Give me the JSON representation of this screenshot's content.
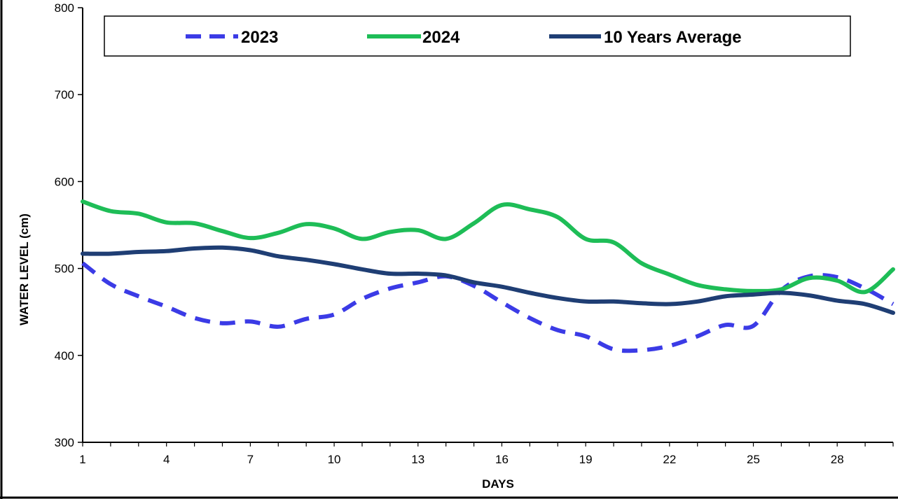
{
  "chart_data": {
    "type": "line",
    "xlabel": "DAYS",
    "ylabel": "WATER LEVEL (cm)",
    "xlim": [
      1,
      30
    ],
    "ylim": [
      300,
      800
    ],
    "x_ticks": [
      1,
      4,
      7,
      10,
      13,
      16,
      19,
      22,
      25,
      28
    ],
    "y_ticks": [
      300,
      400,
      500,
      600,
      700,
      800
    ],
    "grid": false,
    "legend_position": "top",
    "x": [
      1,
      2,
      3,
      4,
      5,
      6,
      7,
      8,
      9,
      10,
      11,
      12,
      13,
      14,
      15,
      16,
      17,
      18,
      19,
      20,
      21,
      22,
      23,
      24,
      25,
      26,
      27,
      28,
      29,
      30
    ],
    "series": [
      {
        "name": "2023",
        "color": "#3b3be6",
        "dash": "dashed",
        "values": [
          506,
          482,
          468,
          456,
          443,
          437,
          439,
          433,
          442,
          447,
          465,
          477,
          484,
          491,
          480,
          461,
          443,
          429,
          422,
          407,
          406,
          411,
          422,
          435,
          434,
          475,
          491,
          490,
          477,
          459
        ]
      },
      {
        "name": "2024",
        "color": "#1ebd57",
        "dash": "solid",
        "values": [
          577,
          566,
          563,
          553,
          552,
          543,
          535,
          541,
          551,
          546,
          534,
          542,
          544,
          534,
          552,
          573,
          568,
          559,
          534,
          530,
          506,
          493,
          481,
          476,
          474,
          476,
          489,
          486,
          473,
          499
        ]
      },
      {
        "name": "10 Years Average",
        "color": "#1f3e74",
        "dash": "solid",
        "values": [
          517,
          517,
          519,
          520,
          523,
          524,
          521,
          514,
          510,
          505,
          499,
          494,
          494,
          492,
          484,
          479,
          472,
          466,
          462,
          462,
          460,
          459,
          462,
          468,
          470,
          472,
          469,
          463,
          459,
          449
        ]
      }
    ]
  }
}
